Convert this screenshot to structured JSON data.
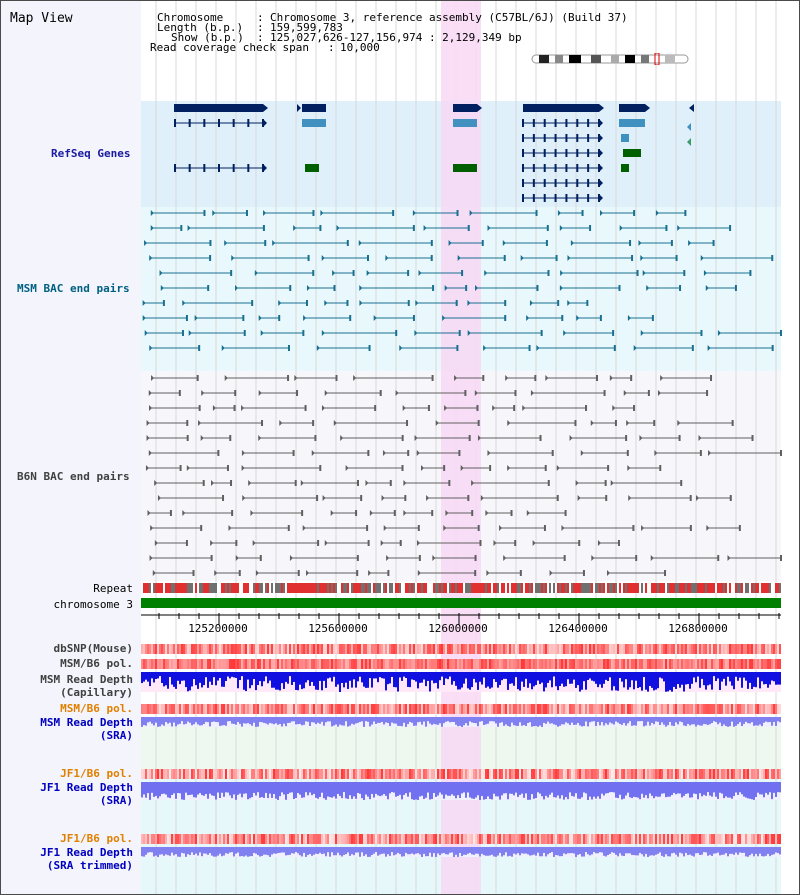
{
  "title": "Map View",
  "info": {
    "chromosome_label": "Chromosome",
    "chromosome_value": "Chromosome 3, reference assembly (C57BL/6J) (Build 37)",
    "length_label": "Length (b.p.)",
    "length_value": "159,599,783",
    "show_label": "Show (b.p.)",
    "show_value": "125,027,626-127,156,974 : 2,129,349 bp",
    "coverage_label": "Read coverage check span",
    "coverage_value": "10,000"
  },
  "tracks": {
    "refseq": "RefSeq Genes",
    "msm_bac": "MSM BAC end pairs",
    "b6n_bac": "B6N BAC end pairs",
    "repeat": "Repeat",
    "chromosome": "chromosome 3",
    "dbsnp": "dbSNP(Mouse)",
    "msm_pol": "MSM/B6 pol.",
    "msm_depth_cap_1": "MSM Read Depth",
    "msm_depth_cap_2": "(Capillary)",
    "msm_pol_sra": "MSM/B6 pol.",
    "msm_depth_sra_1": "MSM Read Depth",
    "msm_depth_sra_2": "(SRA)",
    "jf1_pol": "JF1/B6 pol.",
    "jf1_depth_1": "JF1 Read Depth",
    "jf1_depth_2": "(SRA)",
    "jf1_pol_trim": "JF1/B6 pol.",
    "jf1_depth_trim_1": "JF1 Read Depth",
    "jf1_depth_trim_2": "(SRA trimmed)"
  },
  "axis": {
    "ticks": [
      "125200000",
      "125600000",
      "126000000",
      "126400000",
      "126800000"
    ]
  },
  "colors": {
    "refseq_label": "#1a1aa0",
    "msm_label": "#006080",
    "b6n_label": "#404040",
    "orange_label": "#e08000",
    "blue_label": "#0000c0",
    "highlight": "#f8d8f4",
    "gene_dark": "#002060",
    "gene_light": "#4090c0",
    "gene_green": "#006000"
  }
}
